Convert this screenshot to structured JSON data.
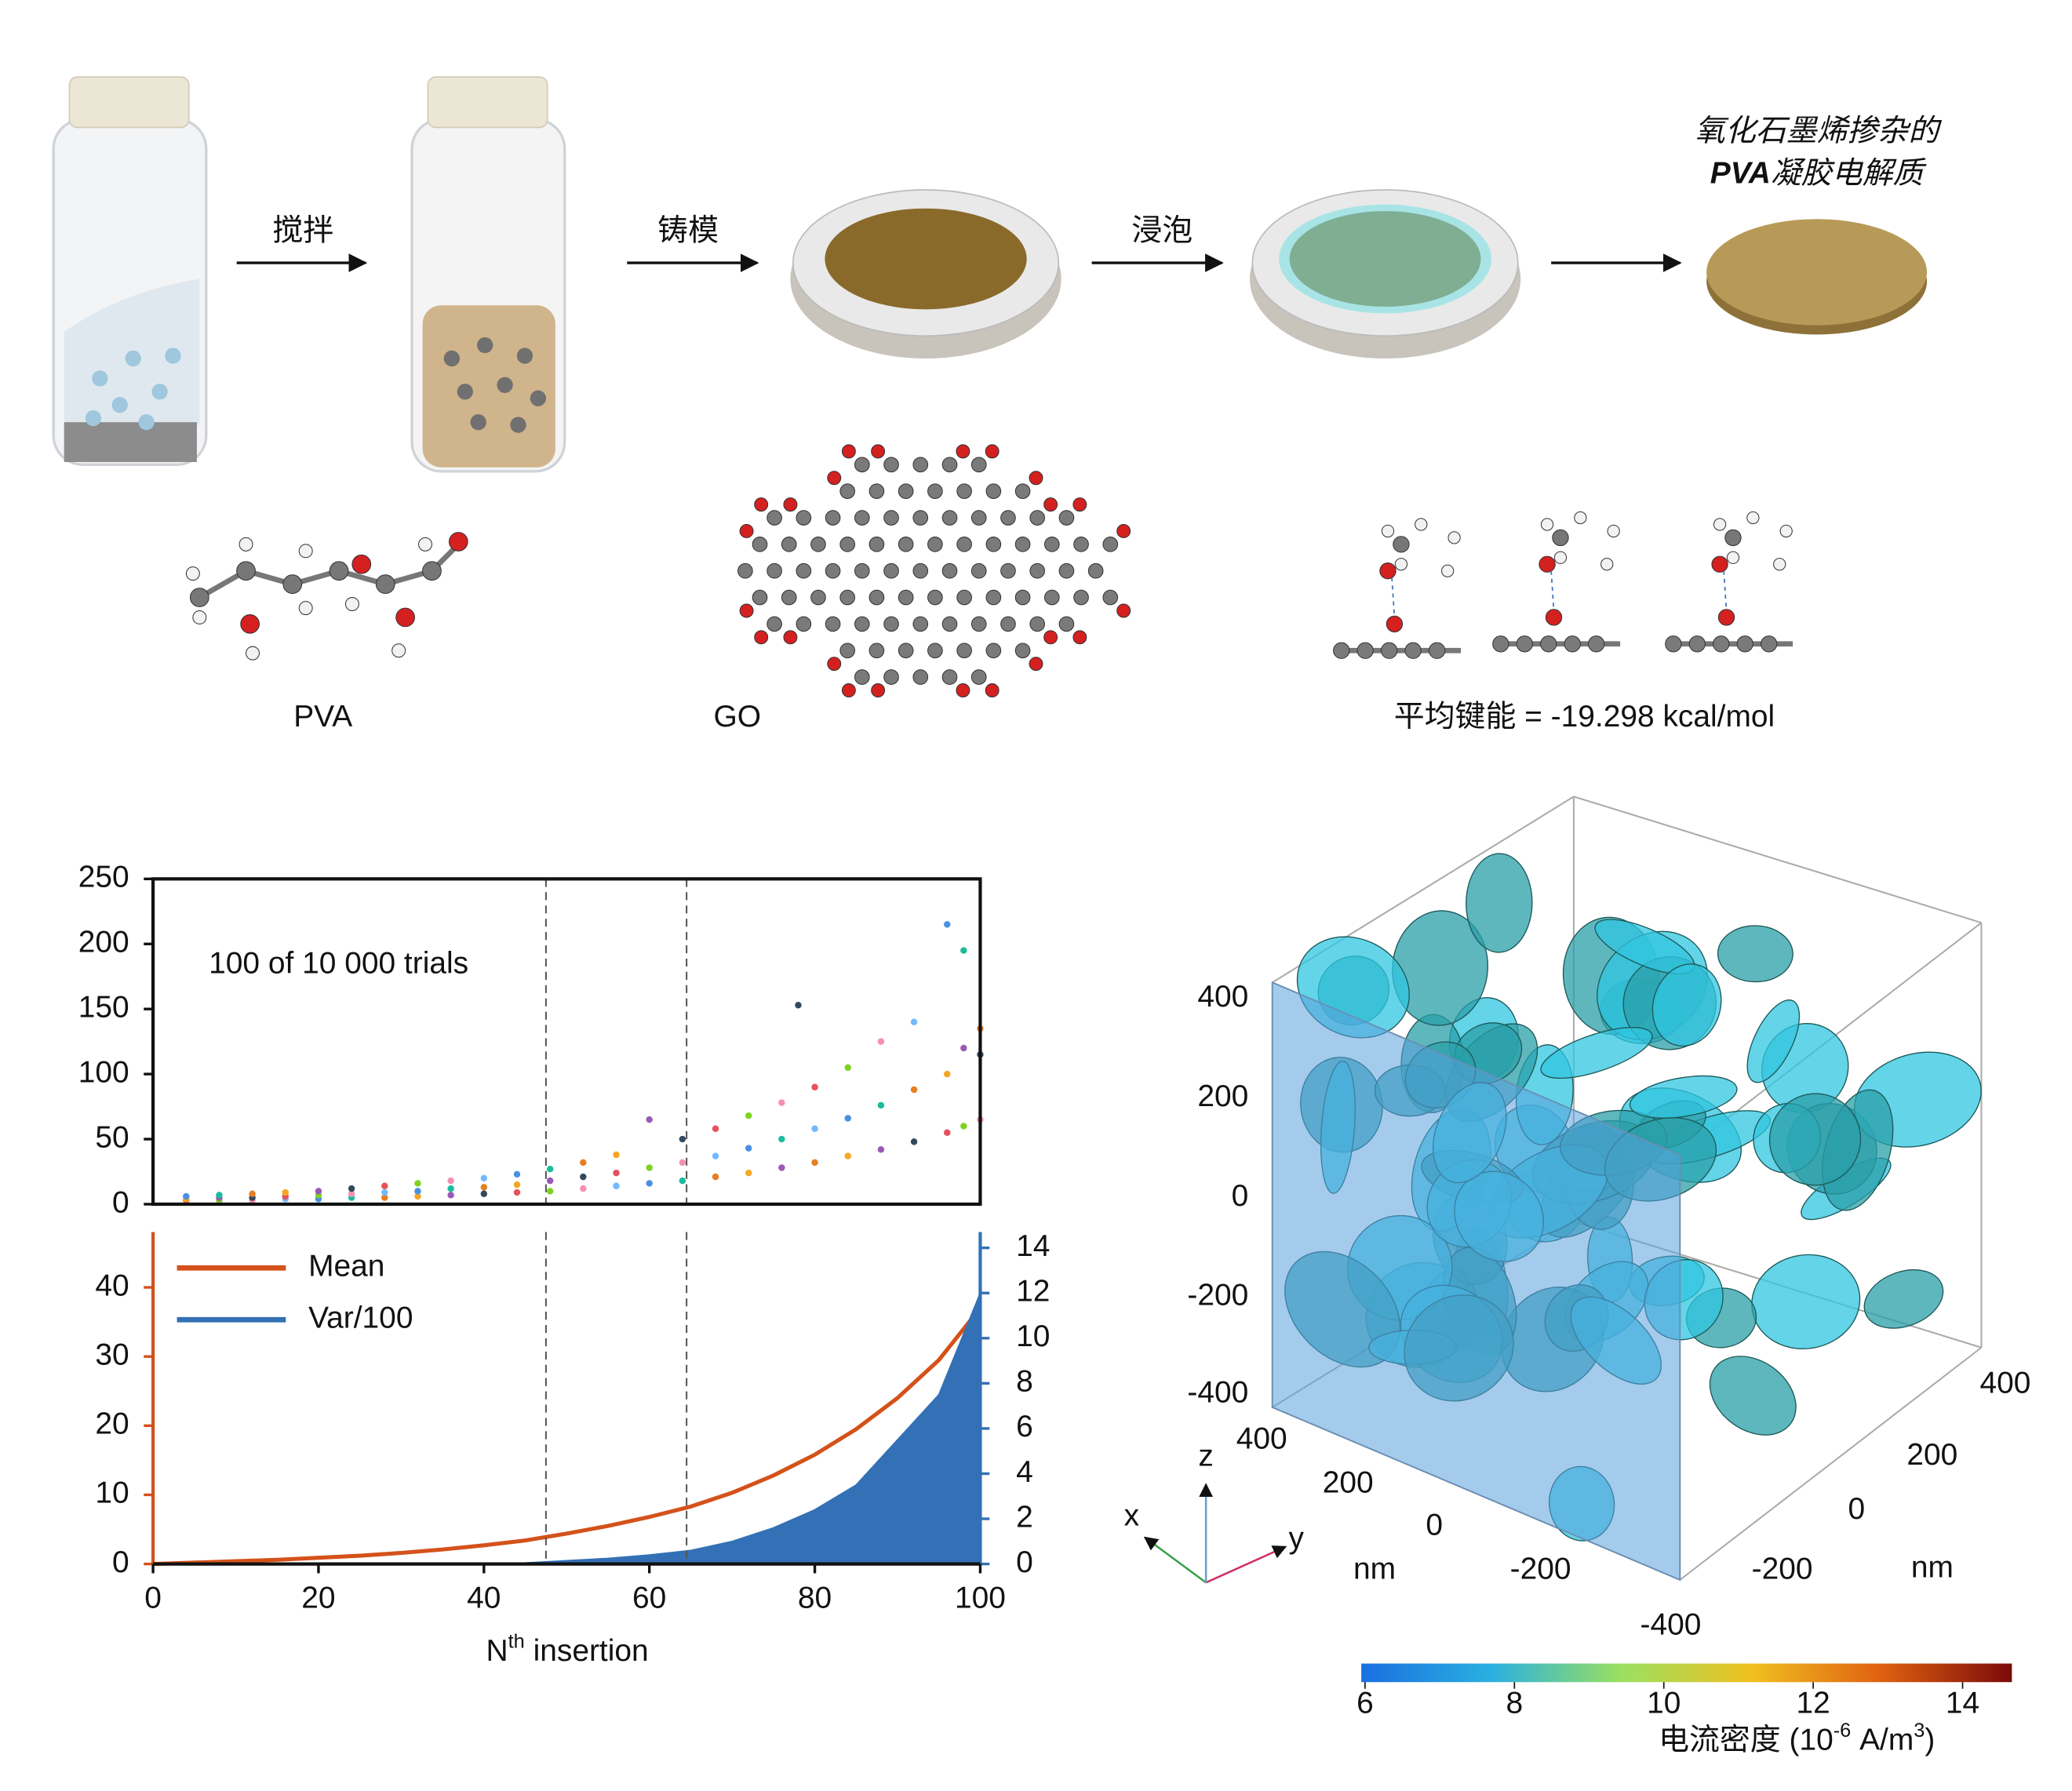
{
  "process": {
    "steps": [
      "搅拌",
      "铸模",
      "浸泡"
    ],
    "product_line1": "氧化石墨烯掺杂的",
    "product_line2": [
      "PVA",
      "凝胶电解质"
    ]
  },
  "molecules": {
    "labels": [
      "PVA",
      "GO"
    ],
    "bond_energy": "平均键能 = -19.298 kcal/mol"
  },
  "chart_data": [
    {
      "type": "scatter",
      "annotation": "100 of 10 000 trials",
      "xlim": [
        0,
        100
      ],
      "ylim": [
        0,
        250
      ],
      "yticks": [
        0,
        50,
        100,
        150,
        200,
        250
      ],
      "vlines": [
        47.5,
        64.5
      ],
      "colors": [
        "#e8505b",
        "#f5a623",
        "#4a90e2",
        "#7ed321",
        "#9b59b6",
        "#1abc9c",
        "#f78fb3",
        "#34495e",
        "#e67e22",
        "#74b9ff"
      ],
      "x": [
        4,
        4,
        4,
        8,
        8,
        8,
        12,
        12,
        12,
        16,
        16,
        16,
        20,
        20,
        20,
        24,
        24,
        24,
        28,
        28,
        28,
        32,
        32,
        32,
        36,
        36,
        36,
        40,
        40,
        40,
        44,
        44,
        44,
        48,
        48,
        48,
        52,
        52,
        52,
        56,
        56,
        56,
        60,
        60,
        60,
        64,
        64,
        64,
        68,
        68,
        68,
        72,
        72,
        72,
        76,
        76,
        76,
        78,
        80,
        80,
        80,
        84,
        84,
        84,
        88,
        88,
        88,
        92,
        92,
        92,
        96,
        96,
        96,
        98,
        98,
        98,
        100,
        100,
        100
      ],
      "y": [
        3,
        4,
        6,
        3,
        5,
        7,
        3,
        5,
        8,
        4,
        6,
        9,
        4,
        7,
        10,
        5,
        8,
        12,
        5,
        9,
        14,
        6,
        10,
        16,
        7,
        12,
        18,
        8,
        13,
        20,
        9,
        15,
        23,
        10,
        18,
        27,
        12,
        21,
        32,
        14,
        24,
        38,
        16,
        28,
        65,
        18,
        32,
        50,
        21,
        37,
        58,
        24,
        43,
        68,
        28,
        50,
        78,
        153,
        32,
        58,
        90,
        37,
        66,
        105,
        42,
        76,
        125,
        48,
        88,
        140,
        55,
        100,
        215,
        60,
        120,
        195,
        65,
        115,
        135
      ]
    },
    {
      "type": "line",
      "xlabel": [
        "N",
        "th",
        " insertion"
      ],
      "xlim": [
        0,
        100
      ],
      "xticks": [
        0,
        20,
        40,
        60,
        80,
        100
      ],
      "ylim": [
        0,
        48
      ],
      "yticks": [
        0,
        10,
        20,
        30,
        40
      ],
      "y2lim": [
        0,
        14.7
      ],
      "y2ticks": [
        0,
        2,
        4,
        6,
        8,
        10,
        12,
        14
      ],
      "vlines": [
        47.5,
        64.5
      ],
      "legend": "upper left",
      "x": [
        0,
        5,
        10,
        15,
        20,
        25,
        30,
        35,
        40,
        45,
        50,
        55,
        60,
        65,
        70,
        75,
        80,
        85,
        90,
        95,
        100
      ],
      "series": [
        {
          "name": "Mean",
          "color": "#d4521a",
          "axis": "y",
          "values": [
            0,
            0.2,
            0.4,
            0.6,
            0.9,
            1.2,
            1.6,
            2.1,
            2.7,
            3.4,
            4.4,
            5.5,
            6.8,
            8.3,
            10.3,
            12.8,
            15.8,
            19.5,
            24,
            29.5,
            37
          ]
        },
        {
          "name": "Var/100",
          "color": "#3370b5",
          "axis": "y2",
          "fill": true,
          "values": [
            0,
            0,
            0,
            0,
            0,
            0,
            0,
            0,
            0.02,
            0.05,
            0.15,
            0.25,
            0.4,
            0.6,
            1.0,
            1.6,
            2.4,
            3.5,
            5.5,
            7.5,
            12
          ]
        }
      ]
    }
  ],
  "cube": {
    "z_ticks": [
      400,
      200,
      0,
      -200,
      -400
    ],
    "x_ticks": [
      400,
      200,
      0,
      -200,
      -400
    ],
    "y_ticks": [
      400,
      200,
      0,
      -200
    ],
    "x_unit": "nm",
    "y_unit": "nm",
    "axes": [
      "x",
      "y",
      "z"
    ],
    "colorbar": {
      "lim": [
        5.95,
        14.66
      ],
      "ticks": [
        6,
        8,
        10,
        12,
        14
      ],
      "colors": [
        "#1a6fe0",
        "#2ab0e0",
        "#9be060",
        "#f0c020",
        "#e06010",
        "#7a0a0a"
      ],
      "label": [
        "电流密度 (10",
        "-6",
        " A/m",
        "3",
        ")"
      ]
    }
  }
}
